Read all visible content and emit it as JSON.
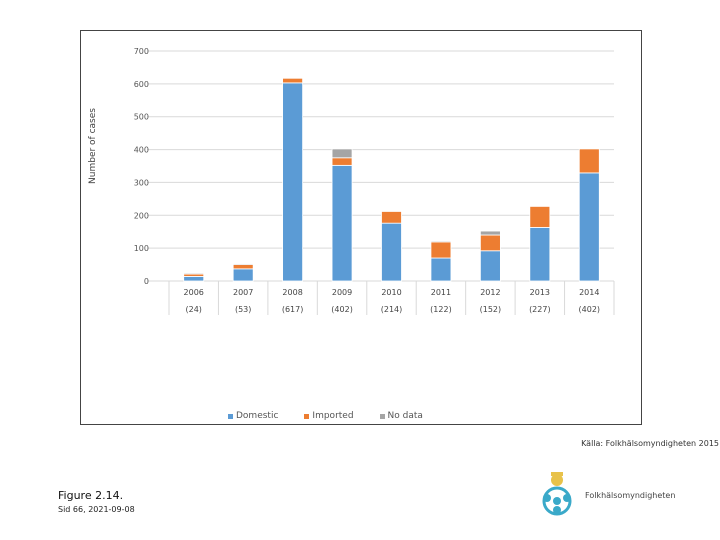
{
  "chart_data": {
    "type": "bar",
    "stacked": true,
    "title": "",
    "xlabel": "",
    "ylabel": "Number of cases",
    "ylim": [
      0,
      700
    ],
    "yticks": [
      0,
      100,
      200,
      300,
      400,
      500,
      600,
      700
    ],
    "categories": [
      "2006",
      "2007",
      "2008",
      "2009",
      "2010",
      "2011",
      "2012",
      "2013",
      "2014"
    ],
    "category_totals": [
      "(24)",
      "(53)",
      "(617)",
      "(402)",
      "(214)",
      "(122)",
      "(152)",
      "(227)",
      "(402)"
    ],
    "series": [
      {
        "name": "Domestic",
        "color": "#5b9bd5",
        "values": [
          14,
          37,
          603,
          352,
          176,
          70,
          92,
          163,
          329
        ]
      },
      {
        "name": "Imported",
        "color": "#ed7d31",
        "values": [
          7,
          13,
          14,
          23,
          36,
          49,
          48,
          64,
          73
        ]
      },
      {
        "name": "No data",
        "color": "#a5a5a5",
        "values": [
          3,
          3,
          0,
          27,
          2,
          3,
          12,
          0,
          0
        ]
      }
    ]
  },
  "legend": {
    "domestic": "Domestic",
    "imported": "Imported",
    "no_data": "No data"
  },
  "source": "Källa: Folkhälsomyndigheten 2015",
  "footer": {
    "figure_label": "Figure 2.14.",
    "slide_label": "Sid 66, 2021-09-08"
  },
  "logo": {
    "text": "Folkhälsomyndigheten"
  }
}
